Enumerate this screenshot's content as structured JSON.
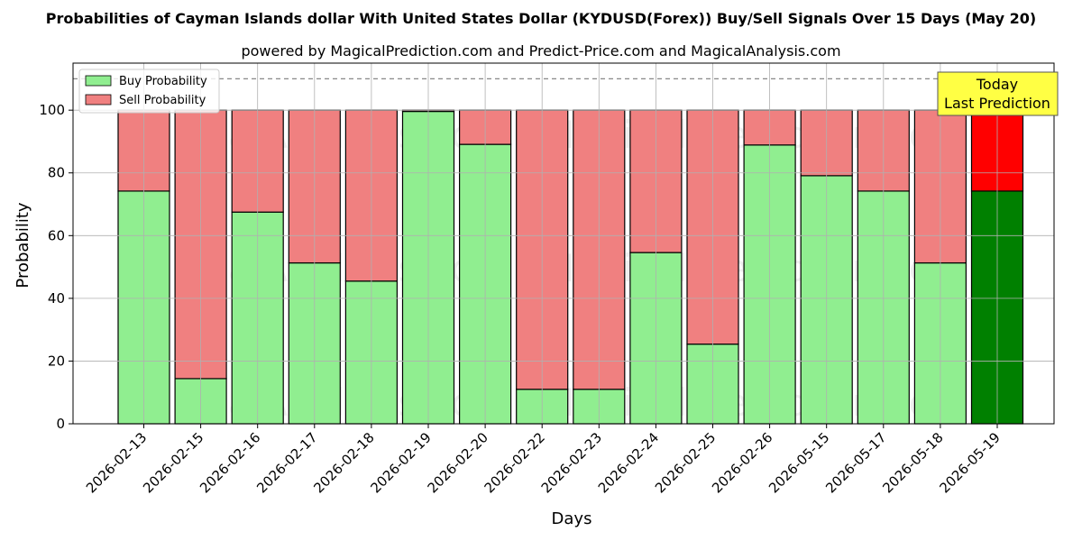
{
  "title": "Probabilities of Cayman Islands dollar With United States Dollar (KYDUSD(Forex)) Buy/Sell Signals Over 15 Days (May 20)",
  "subtitle": "powered by MagicalPrediction.com and Predict-Price.com and MagicalAnalysis.com",
  "watermarks": [
    "MagicalAnalysis.com",
    "MagicalPrediction.com"
  ],
  "today_label": [
    "Today",
    "Last Prediction"
  ],
  "colors": {
    "buy": "#90ee90",
    "sell": "#f08080",
    "buy_last": "#008000",
    "sell_last": "#ff0000",
    "today_box": "#ffff44"
  },
  "chart_data": {
    "type": "bar",
    "stacked": true,
    "categories": [
      "2026-02-13",
      "2026-02-15",
      "2026-02-16",
      "2026-02-17",
      "2026-02-18",
      "2026-02-19",
      "2026-02-20",
      "2026-02-22",
      "2026-02-23",
      "2026-02-24",
      "2026-02-25",
      "2026-02-26",
      "2026-05-15",
      "2026-05-17",
      "2026-05-18",
      "2026-05-19"
    ],
    "series": [
      {
        "name": "Buy Probability",
        "values": [
          74.2,
          14.4,
          67.5,
          51.3,
          45.5,
          99.6,
          89.1,
          11.0,
          11.0,
          54.6,
          25.4,
          88.9,
          79.1,
          74.2,
          51.3,
          74.2
        ]
      },
      {
        "name": "Sell Probability",
        "values": [
          25.8,
          85.6,
          32.5,
          48.7,
          54.5,
          0.4,
          10.9,
          89.0,
          89.0,
          45.4,
          74.6,
          11.1,
          20.9,
          25.8,
          48.7,
          25.8
        ]
      }
    ],
    "xlabel": "Days",
    "ylabel": "Probability",
    "ylim": [
      0,
      115
    ],
    "yticks": [
      0,
      20,
      40,
      60,
      80,
      100
    ],
    "reference_line": 110,
    "grid": true,
    "legend": "top-left"
  }
}
